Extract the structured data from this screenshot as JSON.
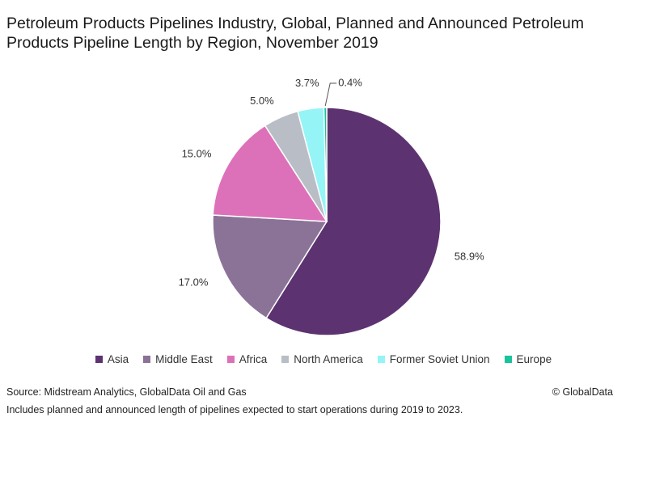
{
  "chart_data": {
    "type": "pie",
    "title": "Petroleum Products Pipelines Industry, Global, Planned and Announced Petroleum Products Pipeline Length by Region, November 2019",
    "slices": [
      {
        "name": "Asia",
        "value": 58.9,
        "label": "58.9%",
        "color": "#5c3370"
      },
      {
        "name": "Middle East",
        "value": 17.0,
        "label": "17.0%",
        "color": "#8b7398"
      },
      {
        "name": "Africa",
        "value": 15.0,
        "label": "15.0%",
        "color": "#dd71b9"
      },
      {
        "name": "North America",
        "value": 5.0,
        "label": "5.0%",
        "color": "#b9bec6"
      },
      {
        "name": "Former Soviet Union",
        "value": 3.7,
        "label": "3.7%",
        "color": "#95f4f6"
      },
      {
        "name": "Europe",
        "value": 0.4,
        "label": "0.4%",
        "color": "#19c39c"
      }
    ],
    "legend_position": "bottom"
  },
  "footer": {
    "source": "Source: Midstream Analytics, GlobalData Oil and Gas",
    "note": "Includes planned and announced length of pipelines expected to start operations during 2019 to 2023.",
    "copyright": "© GlobalData"
  }
}
